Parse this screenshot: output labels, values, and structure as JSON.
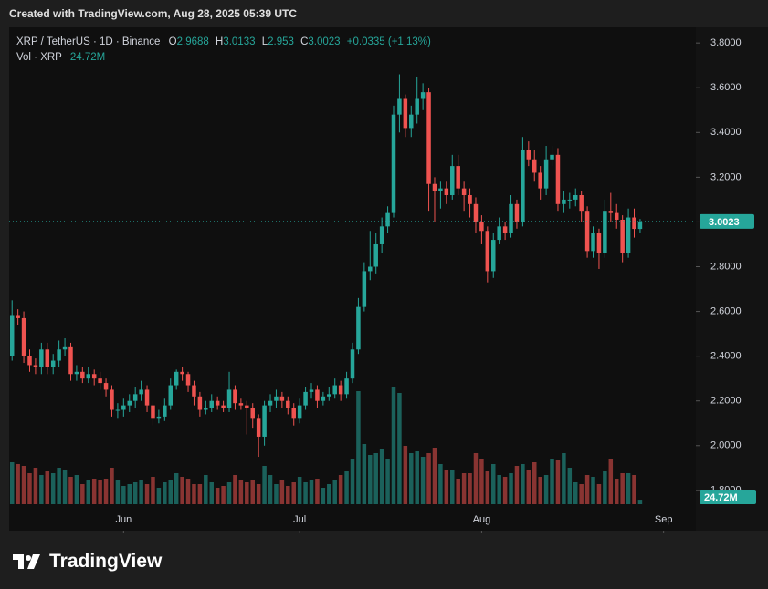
{
  "caption": "Created with TradingView.com, Aug 28, 2025 05:39 UTC",
  "brand": "TradingView",
  "chart_data": {
    "type": "candlestick",
    "symbol": "XRP / TetherUS · 1D · Binance",
    "ohlc_labels": [
      "O",
      "H",
      "L",
      "C"
    ],
    "change_label": "+0.0335 (+1.13%)",
    "volume_title": "Vol · XRP",
    "volume_last_label": "24.72M",
    "up_color": "#26a69a",
    "down_color": "#ef5350",
    "open": [
      2.4,
      2.58,
      2.57,
      2.4,
      2.36,
      2.35,
      2.43,
      2.35,
      2.38,
      2.43,
      2.44,
      2.32,
      2.33,
      2.3,
      2.32,
      2.3,
      2.28,
      2.25,
      2.16,
      2.16,
      2.18,
      2.2,
      2.23,
      2.25,
      2.18,
      2.12,
      2.13,
      2.18,
      2.27,
      2.33,
      2.32,
      2.27,
      2.22,
      2.16,
      2.17,
      2.2,
      2.18,
      2.17,
      2.25,
      2.19,
      2.18,
      2.17,
      2.12,
      2.04,
      2.18,
      2.2,
      2.22,
      2.2,
      2.17,
      2.12,
      2.18,
      2.24,
      2.25,
      2.2,
      2.22,
      2.23,
      2.27,
      2.23,
      2.3,
      2.43,
      2.62,
      2.78,
      2.8,
      2.9,
      2.98,
      3.04,
      3.48,
      3.55,
      3.42,
      3.48,
      3.55,
      3.58,
      3.17,
      3.14,
      3.15,
      3.12,
      3.25,
      3.15,
      3.12,
      3.08,
      3.0,
      2.96,
      2.78,
      2.92,
      2.98,
      2.95,
      3.08,
      3.0,
      3.32,
      3.28,
      3.22,
      3.15,
      3.28,
      3.3,
      3.08,
      3.1,
      3.1,
      3.12,
      3.05,
      2.87,
      2.95,
      2.86,
      3.05,
      3.04,
      3.01,
      2.86,
      3.02,
      2.9688
    ],
    "high": [
      2.65,
      2.61,
      2.6,
      2.43,
      2.39,
      2.46,
      2.46,
      2.41,
      2.47,
      2.48,
      2.46,
      2.36,
      2.35,
      2.35,
      2.34,
      2.33,
      2.3,
      2.27,
      2.19,
      2.21,
      2.23,
      2.26,
      2.29,
      2.27,
      2.2,
      2.16,
      2.21,
      2.3,
      2.34,
      2.35,
      2.33,
      2.29,
      2.24,
      2.2,
      2.23,
      2.22,
      2.2,
      2.33,
      2.27,
      2.21,
      2.2,
      2.19,
      2.14,
      2.2,
      2.23,
      2.25,
      2.24,
      2.22,
      2.19,
      2.21,
      2.26,
      2.28,
      2.27,
      2.24,
      2.26,
      2.3,
      2.29,
      2.33,
      2.46,
      2.66,
      2.82,
      2.96,
      2.95,
      3.02,
      3.07,
      3.52,
      3.66,
      3.57,
      3.52,
      3.65,
      3.62,
      3.6,
      3.2,
      3.18,
      3.18,
      3.3,
      3.3,
      3.18,
      3.15,
      3.11,
      3.03,
      2.98,
      2.95,
      3.02,
      3.0,
      3.12,
      3.1,
      3.38,
      3.36,
      3.32,
      3.25,
      3.34,
      3.34,
      3.33,
      3.14,
      3.13,
      3.15,
      3.14,
      3.07,
      2.98,
      2.97,
      3.1,
      3.13,
      3.08,
      3.03,
      3.06,
      3.06,
      3.0133
    ],
    "low": [
      2.38,
      2.54,
      2.37,
      2.33,
      2.32,
      2.32,
      2.32,
      2.32,
      2.35,
      2.4,
      2.29,
      2.29,
      2.28,
      2.28,
      2.27,
      2.25,
      2.22,
      2.13,
      2.12,
      2.13,
      2.15,
      2.17,
      2.2,
      2.15,
      2.09,
      2.1,
      2.11,
      2.16,
      2.25,
      2.29,
      2.24,
      2.18,
      2.13,
      2.14,
      2.15,
      2.16,
      2.15,
      2.15,
      2.16,
      2.16,
      2.05,
      2.08,
      1.95,
      2.0,
      2.15,
      2.17,
      2.17,
      2.14,
      2.09,
      2.1,
      2.16,
      2.21,
      2.17,
      2.18,
      2.2,
      2.21,
      2.2,
      2.21,
      2.28,
      2.41,
      2.6,
      2.74,
      2.77,
      2.86,
      2.95,
      3.02,
      3.4,
      3.38,
      3.38,
      3.44,
      3.5,
      3.05,
      3.0,
      3.06,
      3.08,
      3.1,
      3.12,
      3.05,
      3.02,
      2.95,
      2.9,
      2.73,
      2.75,
      2.9,
      2.92,
      2.93,
      2.97,
      2.98,
      3.25,
      3.18,
      3.1,
      3.12,
      3.25,
      3.05,
      3.04,
      3.06,
      3.07,
      3.0,
      2.84,
      2.84,
      2.79,
      2.84,
      3.0,
      2.97,
      2.82,
      2.84,
      2.93,
      2.953
    ],
    "close": [
      2.58,
      2.57,
      2.4,
      2.36,
      2.35,
      2.43,
      2.35,
      2.38,
      2.43,
      2.44,
      2.32,
      2.33,
      2.3,
      2.32,
      2.3,
      2.28,
      2.25,
      2.16,
      2.16,
      2.18,
      2.2,
      2.23,
      2.25,
      2.18,
      2.12,
      2.13,
      2.18,
      2.27,
      2.33,
      2.32,
      2.27,
      2.22,
      2.16,
      2.17,
      2.2,
      2.18,
      2.17,
      2.25,
      2.19,
      2.18,
      2.17,
      2.12,
      2.04,
      2.18,
      2.2,
      2.22,
      2.2,
      2.17,
      2.12,
      2.18,
      2.24,
      2.25,
      2.2,
      2.22,
      2.23,
      2.27,
      2.23,
      2.3,
      2.43,
      2.62,
      2.78,
      2.8,
      2.9,
      2.98,
      3.04,
      3.48,
      3.55,
      3.42,
      3.48,
      3.55,
      3.58,
      3.17,
      3.14,
      3.15,
      3.12,
      3.25,
      3.15,
      3.12,
      3.08,
      3.0,
      2.96,
      2.78,
      2.92,
      2.98,
      2.95,
      3.08,
      3.0,
      3.32,
      3.28,
      3.22,
      3.15,
      3.28,
      3.3,
      3.08,
      3.1,
      3.1,
      3.12,
      3.05,
      2.87,
      2.95,
      2.86,
      3.05,
      3.04,
      3.01,
      2.86,
      3.02,
      2.9688,
      3.0023
    ],
    "volume": [
      230,
      220,
      210,
      170,
      200,
      160,
      180,
      170,
      200,
      190,
      150,
      160,
      110,
      130,
      140,
      130,
      140,
      200,
      130,
      100,
      110,
      120,
      130,
      110,
      150,
      90,
      120,
      130,
      170,
      150,
      140,
      110,
      110,
      160,
      120,
      90,
      100,
      120,
      160,
      130,
      120,
      130,
      110,
      210,
      160,
      110,
      130,
      100,
      120,
      150,
      120,
      130,
      140,
      90,
      110,
      130,
      160,
      180,
      250,
      620,
      330,
      270,
      280,
      300,
      250,
      640,
      610,
      320,
      280,
      290,
      260,
      280,
      310,
      220,
      190,
      190,
      140,
      170,
      170,
      280,
      250,
      180,
      220,
      160,
      150,
      170,
      210,
      220,
      190,
      230,
      150,
      160,
      250,
      240,
      280,
      200,
      120,
      110,
      160,
      150,
      110,
      180,
      250,
      140,
      170,
      170,
      160,
      24.72
    ],
    "ylim": [
      1.62,
      3.87
    ],
    "yticks": [
      {
        "value": 1.8,
        "label": "1.8000"
      },
      {
        "value": 2.0,
        "label": "2.0000"
      },
      {
        "value": 2.2,
        "label": "2.2000"
      },
      {
        "value": 2.4,
        "label": "2.4000"
      },
      {
        "value": 2.6,
        "label": "2.6000"
      },
      {
        "value": 2.8,
        "label": "2.8000"
      },
      {
        "value": 3.0,
        "label": "3.0000"
      },
      {
        "value": 3.2,
        "label": "3.2000"
      },
      {
        "value": 3.4,
        "label": "3.4000"
      },
      {
        "value": 3.6,
        "label": "3.6000"
      },
      {
        "value": 3.8,
        "label": "3.8000"
      }
    ],
    "volume_ylim": [
      0,
      700
    ],
    "xlim": [
      -0.5,
      116.5
    ],
    "xticks": [
      {
        "value": 19,
        "label": "Jun"
      },
      {
        "value": 49,
        "label": "Jul"
      },
      {
        "value": 80,
        "label": "Aug"
      },
      {
        "value": 111,
        "label": "Sep"
      }
    ],
    "grid": false
  }
}
